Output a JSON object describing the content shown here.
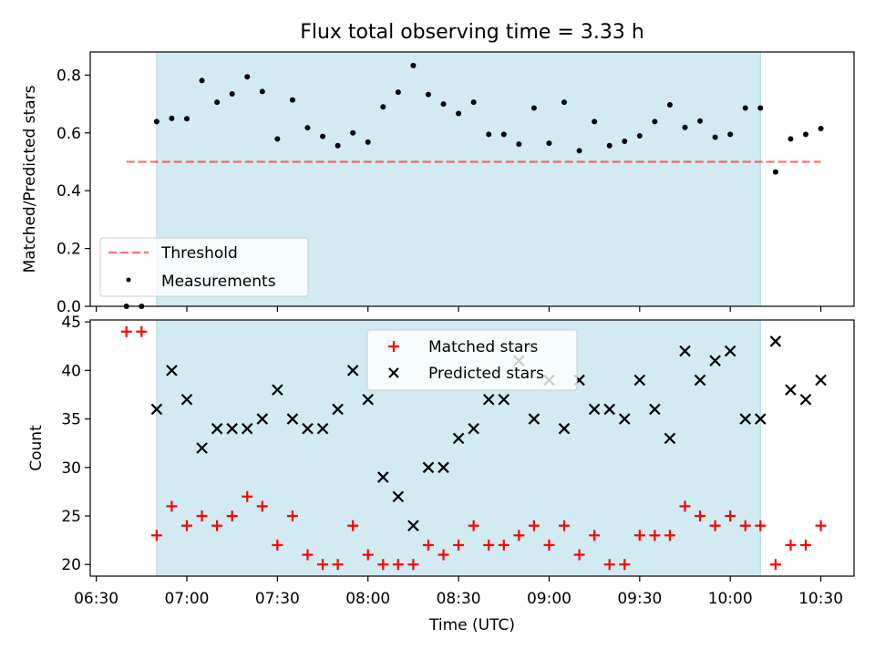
{
  "chart_data": {
    "type": "scatter",
    "title": "Flux total observing time = 3.33 h",
    "colors": {
      "highlight": "#add8e6",
      "threshold": "#ff0000",
      "measurement": "#000000",
      "matched": "#ff0000",
      "predicted": "#000000"
    },
    "x_axis": {
      "label": "Time (UTC)",
      "ticks": [
        "06:30",
        "07:00",
        "07:30",
        "08:00",
        "08:30",
        "09:00",
        "09:30",
        "10:00",
        "10:30"
      ],
      "range": [
        "06:28",
        "10:41"
      ],
      "shared": true
    },
    "highlight_span": [
      "06:50",
      "10:10"
    ],
    "top": {
      "ylabel": "Matched/Predicted stars",
      "ylim": [
        0,
        0.88
      ],
      "yticks": [
        "0.0",
        "0.2",
        "0.4",
        "0.6",
        "0.8"
      ],
      "threshold": {
        "name": "Threshold",
        "value": 0.5,
        "x_range": [
          "06:40",
          "10:30"
        ]
      },
      "measurements_name": "Measurements",
      "legend": "lower-left",
      "x": [
        "06:40",
        "06:45",
        "06:50",
        "06:55",
        "07:00",
        "07:05",
        "07:10",
        "07:15",
        "07:20",
        "07:25",
        "07:30",
        "07:35",
        "07:40",
        "07:45",
        "07:50",
        "07:55",
        "08:00",
        "08:05",
        "08:10",
        "08:15",
        "08:20",
        "08:25",
        "08:30",
        "08:35",
        "08:40",
        "08:45",
        "08:50",
        "08:55",
        "09:00",
        "09:05",
        "09:10",
        "09:15",
        "09:20",
        "09:25",
        "09:30",
        "09:35",
        "09:40",
        "09:45",
        "09:50",
        "09:55",
        "10:00",
        "10:05",
        "10:10",
        "10:15",
        "10:20",
        "10:25",
        "10:30"
      ],
      "values": [
        0.0,
        0.0,
        0.639,
        0.65,
        0.649,
        0.781,
        0.706,
        0.735,
        0.794,
        0.743,
        0.579,
        0.714,
        0.618,
        0.588,
        0.556,
        0.6,
        0.568,
        0.69,
        0.741,
        0.833,
        0.733,
        0.7,
        0.667,
        0.706,
        0.595,
        0.595,
        0.561,
        0.686,
        0.564,
        0.706,
        0.538,
        0.639,
        0.556,
        0.571,
        0.59,
        0.639,
        0.697,
        0.619,
        0.641,
        0.585,
        0.595,
        0.686,
        0.686,
        0.465,
        0.579,
        0.595,
        0.615
      ]
    },
    "bottom": {
      "ylabel": "Count",
      "ylim": [
        18.8,
        45.2
      ],
      "yticks": [
        "20",
        "25",
        "30",
        "35",
        "40",
        "45"
      ],
      "legend": "upper-center",
      "series": [
        {
          "name": "Matched stars",
          "marker": "+",
          "values": [
            44,
            44,
            23,
            26,
            24,
            25,
            24,
            25,
            27,
            26,
            22,
            25,
            21,
            20,
            20,
            24,
            21,
            20,
            20,
            20,
            22,
            21,
            22,
            24,
            22,
            22,
            23,
            24,
            22,
            24,
            21,
            23,
            20,
            20,
            23,
            23,
            23,
            26,
            25,
            24,
            25,
            24,
            24,
            20,
            22,
            22,
            24
          ]
        },
        {
          "name": "Predicted stars",
          "marker": "x",
          "values": [
            null,
            null,
            36,
            40,
            37,
            32,
            34,
            34,
            34,
            35,
            38,
            35,
            34,
            34,
            36,
            40,
            37,
            29,
            27,
            24,
            30,
            30,
            33,
            34,
            37,
            37,
            41,
            35,
            39,
            34,
            39,
            36,
            36,
            35,
            39,
            36,
            33,
            42,
            39,
            41,
            42,
            35,
            35,
            43,
            38,
            37,
            39
          ]
        }
      ]
    }
  }
}
